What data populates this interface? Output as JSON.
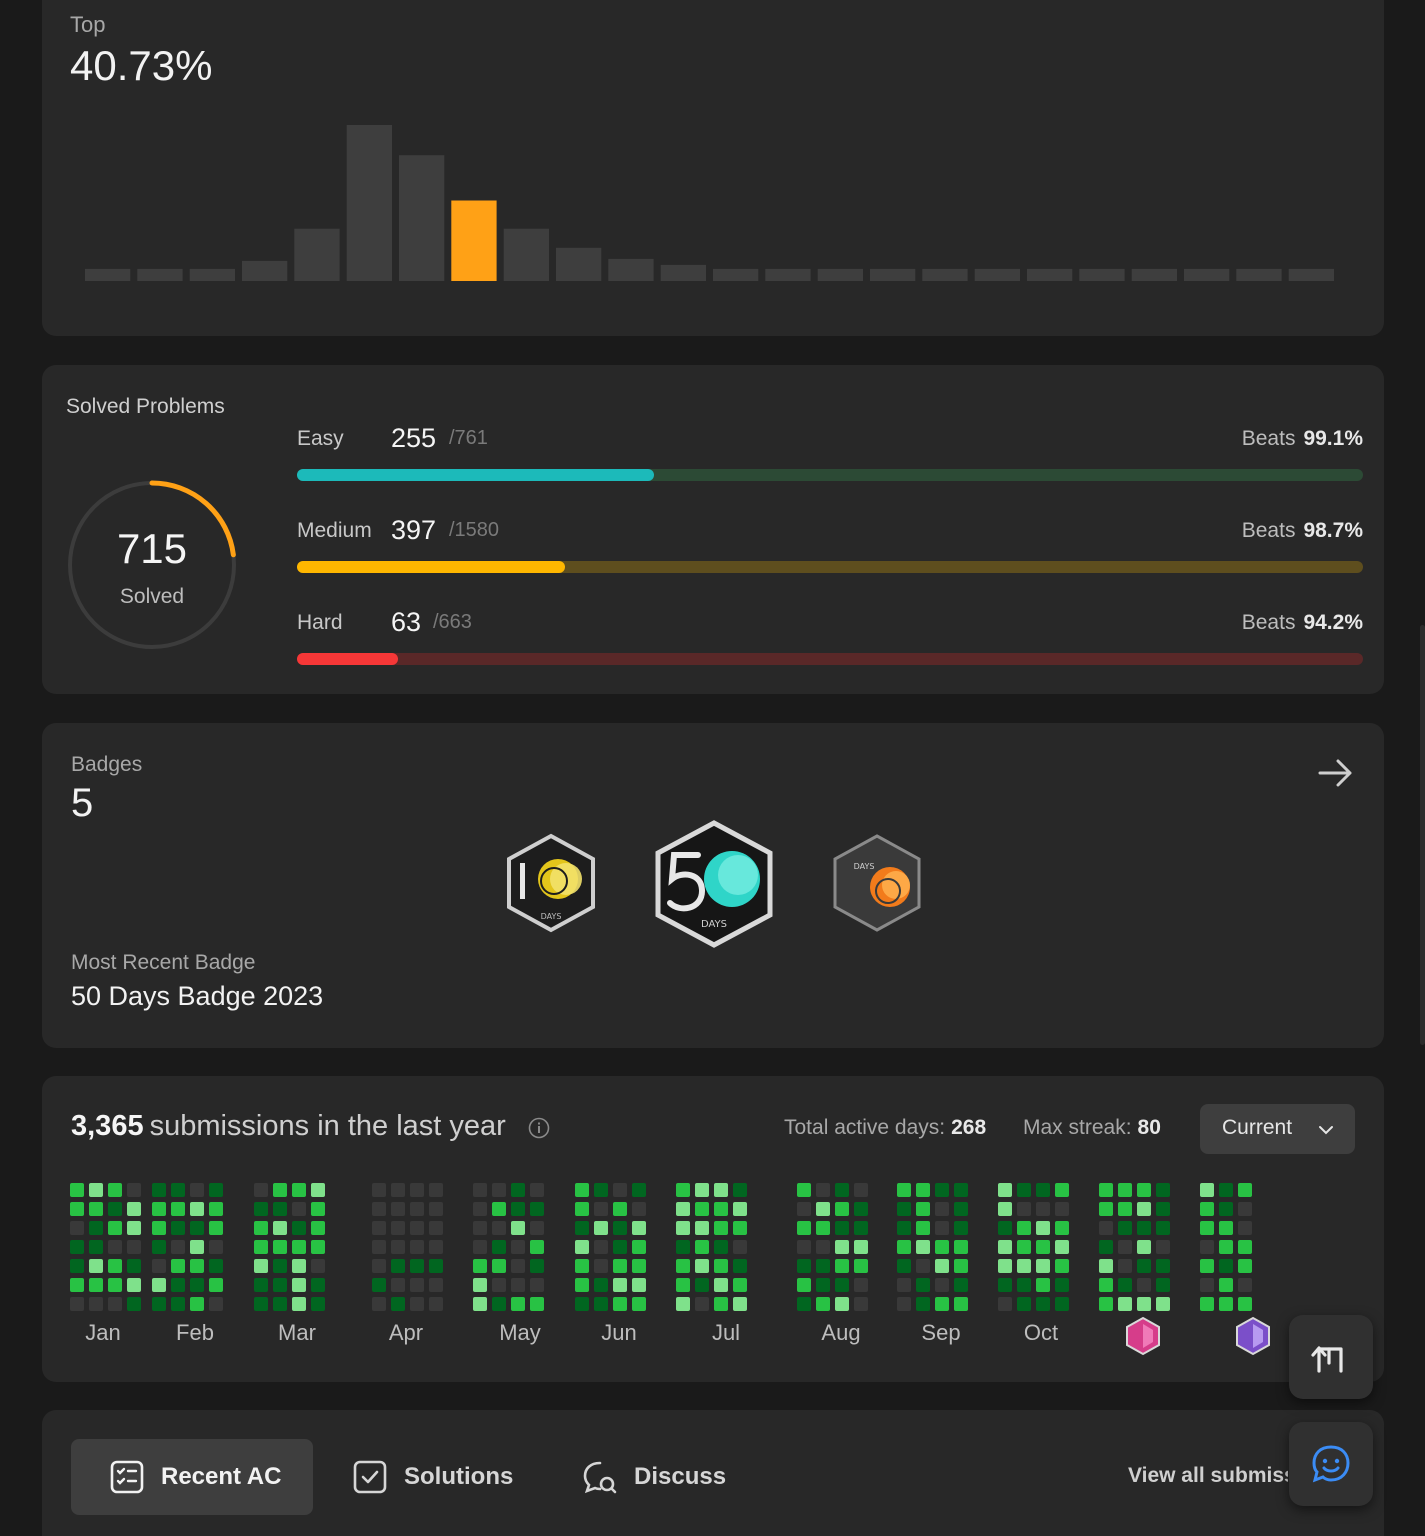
{
  "contest": {
    "top_label": "Top",
    "top_value": "40.73%",
    "histogram": {
      "values": [
        12,
        12,
        12,
        20,
        52,
        155,
        125,
        80,
        52,
        33,
        22,
        16,
        12,
        12,
        12,
        12,
        12,
        12,
        12,
        12,
        12,
        12,
        12,
        12
      ],
      "highlight_index": 7,
      "bar_color": "#3e3e3e",
      "highlight_color": "#ffa116"
    }
  },
  "solved": {
    "title": "Solved Problems",
    "total": "715",
    "total_label": "Solved",
    "ring_fraction": 0.23,
    "difficulties": [
      {
        "name": "Easy",
        "count": "255",
        "total": "/761",
        "beats_label": "Beats",
        "beats": "99.1%",
        "fraction": 0.335,
        "color": "#1cbaba",
        "track": "#2c4a35"
      },
      {
        "name": "Medium",
        "count": "397",
        "total": "/1580",
        "beats_label": "Beats",
        "beats": "98.7%",
        "fraction": 0.251,
        "color": "#ffb700",
        "track": "#5e4e1e"
      },
      {
        "name": "Hard",
        "count": "63",
        "total": "/663",
        "beats_label": "Beats",
        "beats": "94.2%",
        "fraction": 0.095,
        "color": "#f63737",
        "track": "#5a2828"
      }
    ]
  },
  "badges": {
    "label": "Badges",
    "count": "5",
    "recent_label": "Most Recent Badge",
    "recent_value": "50 Days Badge 2023",
    "items": [
      {
        "name": "100 days badge",
        "text": "DAYS"
      },
      {
        "name": "50 days badge",
        "text": "DAYS"
      },
      {
        "name": "annual badge",
        "text": "DAYS"
      }
    ]
  },
  "submissions": {
    "count": "3,365",
    "label": "submissions in the last year",
    "active_label": "Total active days:",
    "active_value": "268",
    "streak_label": "Max streak:",
    "streak_value": "80",
    "select_value": "Current",
    "months": [
      "Jan",
      "Feb",
      "Mar",
      "Apr",
      "May",
      "Jun",
      "Jul",
      "Aug",
      "Sep",
      "Oct"
    ],
    "colors": {
      "empty": "#393939",
      "l1": "#016620",
      "l2": "#28c244",
      "l3": "#7fe18b"
    }
  },
  "tabs": {
    "items": [
      {
        "label": "Recent AC",
        "icon": "list-check-icon"
      },
      {
        "label": "Solutions",
        "icon": "checkbox-icon"
      },
      {
        "label": "Discuss",
        "icon": "discuss-icon"
      }
    ],
    "view_all": "View all submissions"
  }
}
